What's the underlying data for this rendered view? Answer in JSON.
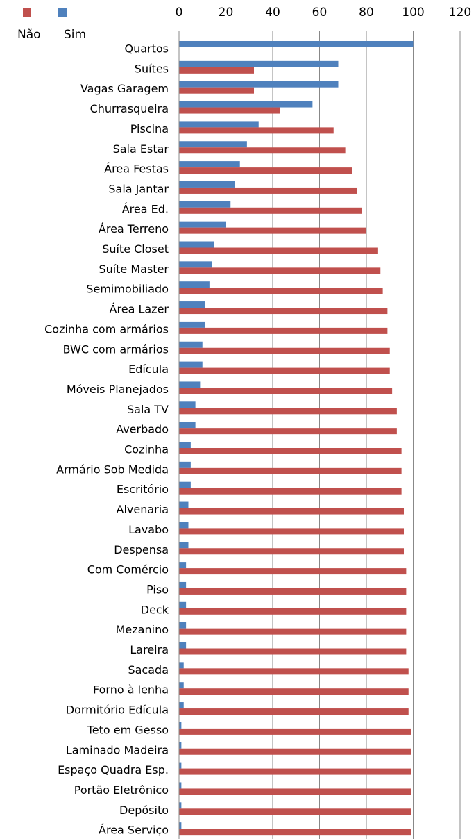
{
  "chart_data": {
    "type": "bar",
    "orientation": "horizontal",
    "categories": [
      "Quartos",
      "Suítes",
      "Vagas Garagem",
      "Churrasqueira",
      "Piscina",
      "Sala Estar",
      "Área Festas",
      "Sala Jantar",
      "Área Ed.",
      "Área Terreno",
      "Suíte Closet",
      "Suíte Master",
      "Semimobiliado",
      "Área Lazer",
      "Cozinha com armários",
      "BWC com armários",
      "Edícula",
      "Móveis Planejados",
      "Sala TV",
      "Averbado",
      "Cozinha",
      "Armário Sob Medida",
      "Escritório",
      "Alvenaria",
      "Lavabo",
      "Despensa",
      "Com Comércio",
      "Piso",
      "Deck",
      "Mezanino",
      "Lareira",
      "Sacada",
      "Forno à lenha",
      "Dormitório Edícula",
      "Teto em Gesso",
      "Laminado Madeira",
      "Espaço Quadra Esp.",
      "Portão Eletrônico",
      "Depósito",
      "Área Serviço"
    ],
    "series": [
      {
        "name": "Não",
        "color": "#c0504d",
        "values": [
          0,
          32,
          32,
          43,
          66,
          71,
          74,
          76,
          78,
          80,
          85,
          86,
          87,
          89,
          89,
          90,
          90,
          91,
          93,
          93,
          95,
          95,
          95,
          96,
          96,
          96,
          97,
          97,
          97,
          97,
          97,
          98,
          98,
          98,
          99,
          99,
          99,
          99,
          99,
          99
        ]
      },
      {
        "name": "Sim",
        "color": "#4f81bd",
        "values": [
          100,
          68,
          68,
          57,
          34,
          29,
          26,
          24,
          22,
          20,
          15,
          14,
          13,
          11,
          11,
          10,
          10,
          9,
          7,
          7,
          5,
          5,
          5,
          4,
          4,
          4,
          3,
          3,
          3,
          3,
          3,
          2,
          2,
          2,
          1,
          1,
          1,
          1,
          1,
          1
        ]
      }
    ],
    "xlim": [
      0,
      120
    ],
    "xticks": [
      0,
      20,
      40,
      60,
      80,
      100,
      120
    ],
    "grid": true,
    "legend": "top-left"
  }
}
